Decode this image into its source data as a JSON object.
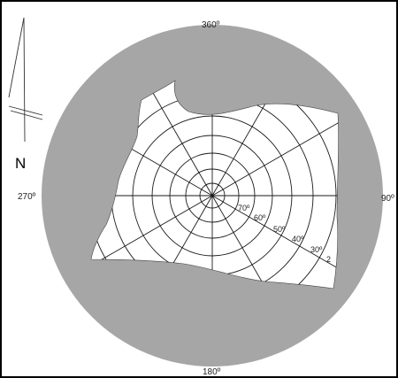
{
  "compass": {
    "north": "360º",
    "east": "90º",
    "south": "180º",
    "west": "270º"
  },
  "north_arrow": {
    "letter": "N"
  },
  "altitude_labels": [
    "70º",
    "60º",
    "50º",
    "40º",
    "30º",
    "2"
  ],
  "colors": {
    "mask": "#a6a6a6",
    "grid": "#1a1a1a",
    "frame": "#000000",
    "background": "#ffffff"
  }
}
